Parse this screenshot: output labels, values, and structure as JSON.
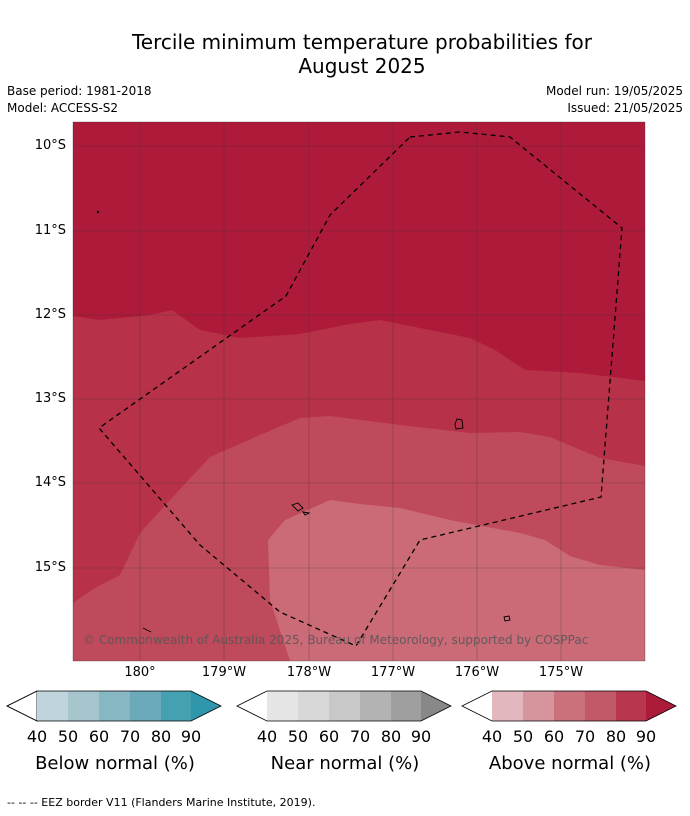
{
  "title_line1": "Tercile minimum temperature probabilities for",
  "title_line2": "August 2025",
  "meta": {
    "base_period": "Base period: 1981-2018",
    "model": "Model: ACCESS-S2",
    "model_run": "Model run: 19/05/2025",
    "issued": "Issued: 21/05/2025"
  },
  "axes": {
    "lat_labels": [
      "10°S",
      "11°S",
      "12°S",
      "13°S",
      "14°S",
      "15°S"
    ],
    "lon_labels": [
      "180°",
      "179°W",
      "178°W",
      "177°W",
      "176°W",
      "175°W"
    ]
  },
  "copyright": "© Commonwealth of Australia 2025, Bureau of Meteorology, supported by COSPPac",
  "legends": [
    {
      "name": "Below normal (%)",
      "ticks": [
        "40",
        "50",
        "60",
        "70",
        "80",
        "90"
      ],
      "colors": [
        "#ffffff",
        "#bfd4dc",
        "#a6c5cd",
        "#88b7c4",
        "#6aaaba",
        "#45a0b2",
        "#2f96ab"
      ]
    },
    {
      "name": "Near normal (%)",
      "ticks": [
        "40",
        "50",
        "60",
        "70",
        "80",
        "90"
      ],
      "colors": [
        "#ffffff",
        "#e5e5e5",
        "#d8d8d8",
        "#c8c8c8",
        "#b3b3b3",
        "#9f9f9f",
        "#888888"
      ]
    },
    {
      "name": "Above normal (%)",
      "ticks": [
        "40",
        "50",
        "60",
        "70",
        "80",
        "90"
      ],
      "colors": [
        "#ffffff",
        "#e2b8be",
        "#d6959d",
        "#cb717d",
        "#c25968",
        "#b8374e",
        "#ad1b3a"
      ]
    }
  ],
  "footnote": "-- -- -- EEZ border V11 (Flanders Marine Institute, 2019)."
}
